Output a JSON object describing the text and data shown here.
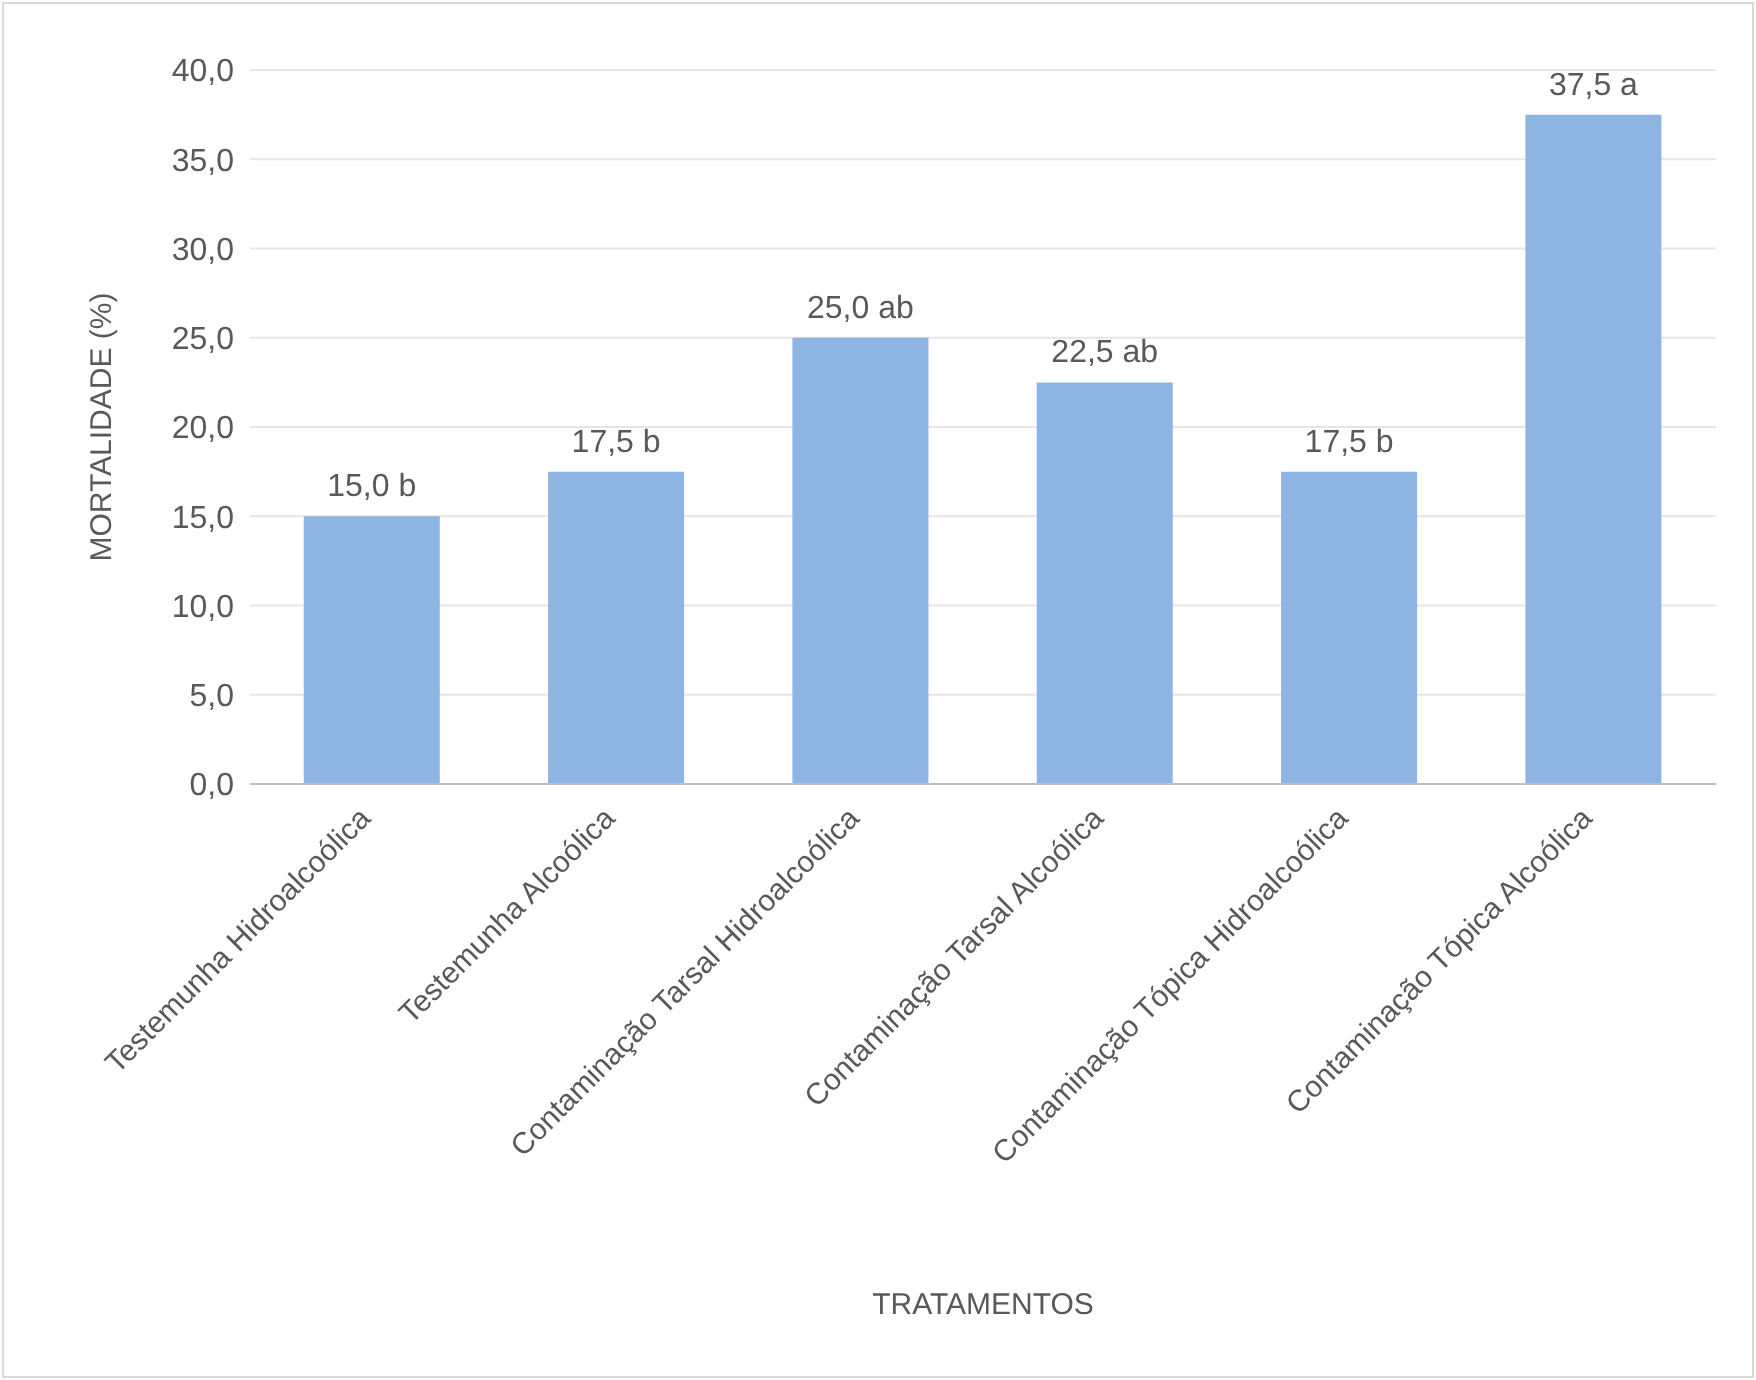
{
  "chart_data": {
    "type": "bar",
    "xlabel": "TRATAMENTOS",
    "ylabel": "MORTALIDADE (%)",
    "categories": [
      "Testemunha Hidroalcoólica",
      "Testemunha Alcoólica",
      "Contaminação Tarsal Hidroalcoólica",
      "Contaminação Tarsal Alcoólica",
      "Contaminação Tópica Hidroalcoólica",
      "Contaminação Tópica Alcoólica"
    ],
    "values": [
      15.0,
      17.5,
      25.0,
      22.5,
      17.5,
      37.5
    ],
    "value_labels": [
      "15,0 b",
      "17,5 b",
      "25,0 ab",
      "22,5 ab",
      "17,5 b",
      "37,5 a"
    ],
    "color": "#8db4e2",
    "ylim": [
      0,
      40
    ],
    "yticks": [
      {
        "value": 0,
        "label": "0,0"
      },
      {
        "value": 5,
        "label": "5,0"
      },
      {
        "value": 10,
        "label": "10,0"
      },
      {
        "value": 15,
        "label": "15,0"
      },
      {
        "value": 20,
        "label": "20,0"
      },
      {
        "value": 25,
        "label": "25,0"
      },
      {
        "value": 30,
        "label": "30,0"
      },
      {
        "value": 35,
        "label": "35,0"
      },
      {
        "value": 40,
        "label": "40,0"
      }
    ],
    "grid": "y",
    "legend": false
  }
}
